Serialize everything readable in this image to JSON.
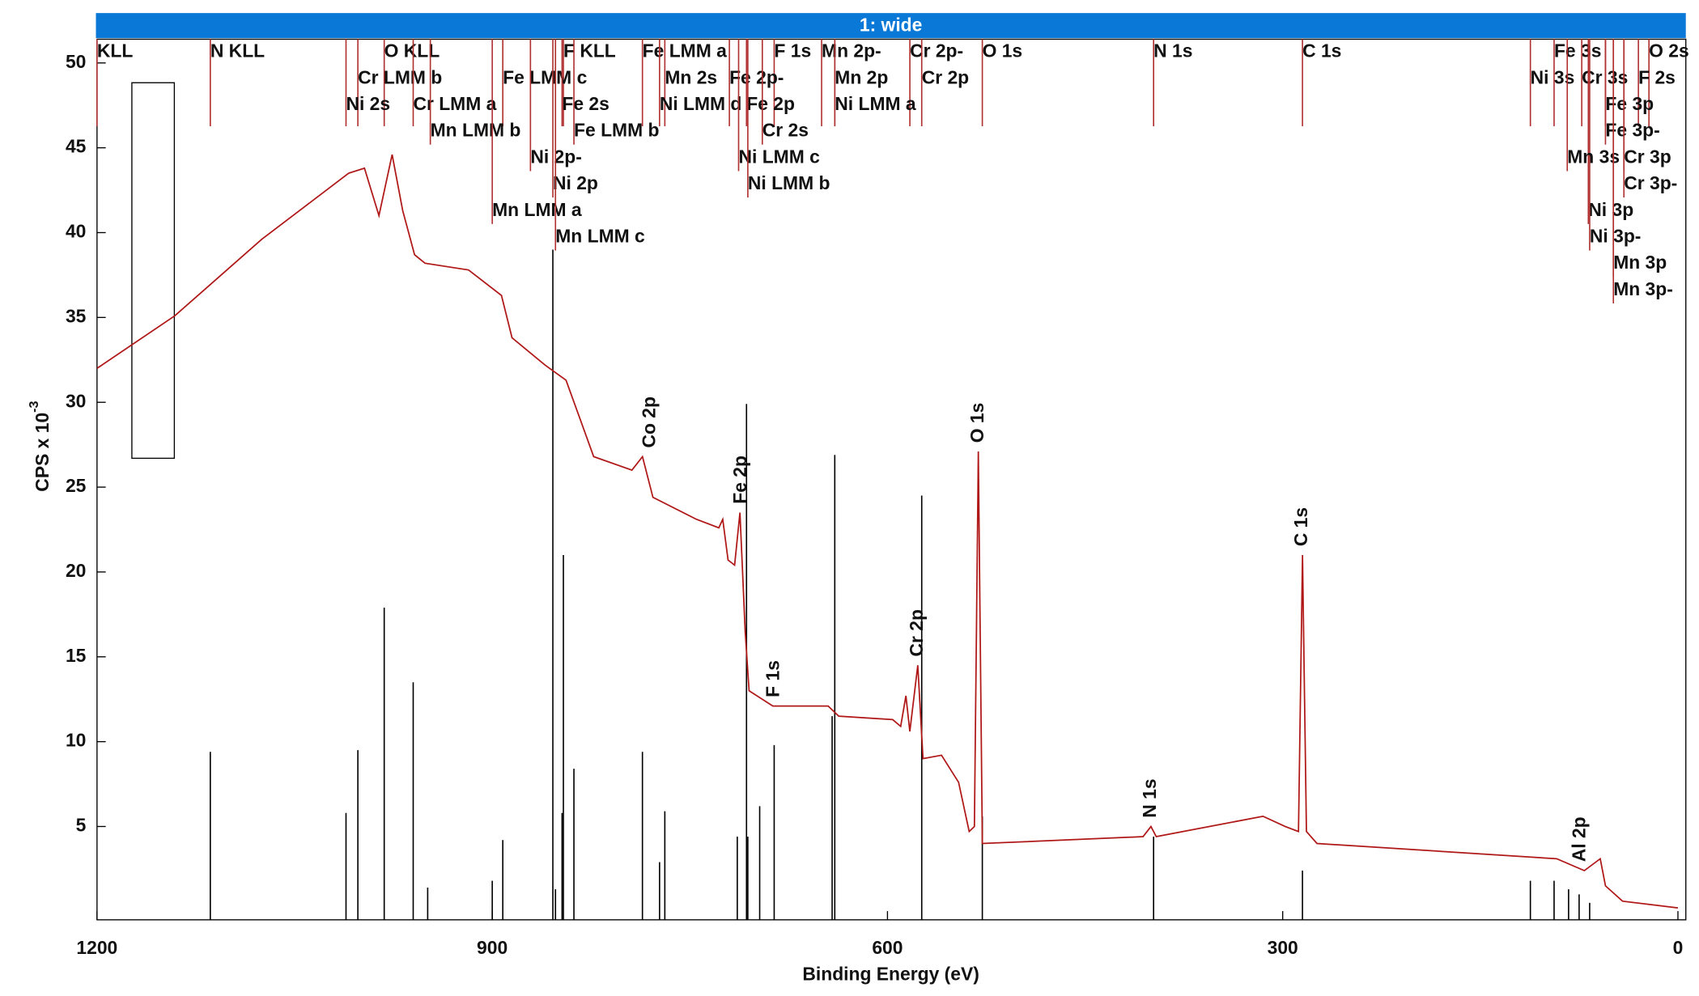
{
  "chart_data": {
    "type": "line",
    "title": "1: wide",
    "x_label": "Binding Energy (eV)",
    "y_label": "CPS x 10",
    "y_label_exponent": "-3",
    "xlim": [
      1200,
      -6
    ],
    "ylim": [
      -0.5,
      51.4
    ],
    "xticks": [
      1200,
      900,
      600,
      300,
      0
    ],
    "yticks": [
      5,
      10,
      15,
      20,
      25,
      30,
      35,
      40,
      45,
      50
    ],
    "x": [
      1200,
      1141,
      1075,
      1009,
      997,
      986,
      976,
      968,
      959,
      951,
      918,
      893,
      885,
      860,
      844,
      823,
      794,
      786,
      778,
      745,
      728,
      725,
      721,
      716,
      712,
      708,
      705,
      687,
      645,
      637,
      596,
      590,
      586,
      583,
      577,
      573,
      559,
      546,
      538,
      534,
      531,
      528,
      406,
      400,
      396,
      315,
      298,
      288,
      285,
      282,
      274,
      92,
      71,
      59,
      55,
      42,
      0
    ],
    "series": [
      {
        "color": "#b01818",
        "values": [
          32.0,
          35.1,
          39.6,
          43.5,
          43.8,
          41.0,
          44.6,
          41.3,
          38.7,
          38.2,
          37.8,
          36.3,
          33.8,
          32.2,
          31.3,
          26.8,
          26.0,
          26.8,
          24.4,
          23.1,
          22.6,
          23.1,
          20.7,
          20.4,
          23.5,
          16.5,
          13.0,
          12.1,
          12.1,
          11.5,
          11.3,
          10.9,
          12.7,
          10.6,
          14.5,
          9.0,
          9.2,
          7.6,
          4.7,
          5.0,
          27.1,
          4.0,
          4.4,
          5.0,
          4.4,
          5.6,
          5.0,
          4.7,
          21.0,
          4.7,
          4.0,
          3.1,
          2.4,
          3.1,
          1.5,
          0.6,
          0.2
        ]
      }
    ],
    "markers": {
      "color": "#b03030",
      "items": [
        {
          "label": "KLL",
          "x": 1200
        },
        {
          "label": "N KLL",
          "x": 1114
        },
        {
          "label": "O KLL",
          "x": 982
        },
        {
          "label": "F KLL",
          "x": 846
        },
        {
          "label": "Fe LMM a",
          "x": 786
        },
        {
          "label": "F 1s",
          "x": 686
        },
        {
          "label": "Mn 2p-",
          "x": 650
        },
        {
          "label": "Cr 2p-",
          "x": 583
        },
        {
          "label": "O 1s",
          "x": 528
        },
        {
          "label": "N 1s",
          "x": 398
        },
        {
          "label": "C 1s",
          "x": 285
        },
        {
          "label": "Fe 3s",
          "x": 94
        },
        {
          "label": "O 2s",
          "x": 22
        },
        {
          "label": "Cr LMM b",
          "x": 1002
        },
        {
          "label": "Fe LMM c",
          "x": 892
        },
        {
          "label": "Mn 2s",
          "x": 769
        },
        {
          "label": "Fe 2p-",
          "x": 720
        },
        {
          "label": "Mn 2p",
          "x": 640
        },
        {
          "label": "Cr 2p",
          "x": 574
        },
        {
          "label": "Cr 3s",
          "x": 73
        },
        {
          "label": "F 2s",
          "x": 30
        },
        {
          "label": "Ni 2s",
          "x": 1011
        },
        {
          "label": "Cr LMM a",
          "x": 960
        },
        {
          "label": "Fe 2s",
          "x": 847
        },
        {
          "label": "Fe 2p",
          "x": 707
        },
        {
          "label": "Ni LMM a",
          "x": 640
        },
        {
          "label": "Ni 3s",
          "x": 112
        },
        {
          "label": "Fe 3p",
          "x": 55
        },
        {
          "label": "Mn LMM b",
          "x": 947
        },
        {
          "label": "Fe LMM b",
          "x": 838
        },
        {
          "label": "Cr 2s",
          "x": 695
        },
        {
          "label": "Fe 3p-",
          "x": 55
        },
        {
          "label": "Ni 2p-",
          "x": 871
        },
        {
          "label": "Ni LMM d",
          "x": 773
        },
        {
          "label": "Cr 3p",
          "x": 41
        },
        {
          "label": "Ni 2p",
          "x": 854
        },
        {
          "label": "Ni LMM c",
          "x": 713
        },
        {
          "label": "Cr 3p-",
          "x": 41
        },
        {
          "label": "Mn LMM a",
          "x": 900
        },
        {
          "label": "Ni LMM b",
          "x": 706
        },
        {
          "label": "Ni 3p",
          "x": 68
        },
        {
          "label": "Mn LMM c",
          "x": 852
        },
        {
          "label": "Ni 3p-",
          "x": 67
        },
        {
          "label": "Mn 3s",
          "x": 84
        },
        {
          "label": "Mn 3p",
          "x": 49
        },
        {
          "label": "Mn 3p-",
          "x": 49
        }
      ]
    },
    "reference_lines": {
      "color": "#000000",
      "x": [
        1114,
        1011,
        1002,
        982,
        960,
        949,
        900,
        892,
        854,
        852,
        847,
        846,
        838,
        786,
        773,
        769,
        714,
        707,
        706,
        697,
        686,
        642,
        640,
        574,
        528,
        398,
        285,
        112,
        94,
        83,
        75,
        67
      ],
      "values": [
        9.4,
        5.8,
        9.5,
        17.9,
        13.5,
        1.4,
        1.8,
        4.2,
        39.0,
        1.3,
        5.8,
        21.0,
        8.4,
        9.4,
        2.9,
        5.9,
        4.4,
        29.9,
        4.4,
        6.2,
        9.8,
        11.5,
        26.9,
        24.5,
        5.6,
        4.4,
        2.4,
        1.8,
        1.8,
        1.3,
        1.0,
        0.5
      ]
    },
    "peak_labels": [
      {
        "label": "Co 2p",
        "x": 780
      },
      {
        "label": "Fe 2p",
        "x": 711
      },
      {
        "label": "F 1s",
        "x": 686
      },
      {
        "label": "Cr 2p",
        "x": 577
      },
      {
        "label": "O 1s",
        "x": 531
      },
      {
        "label": "N 1s",
        "x": 400
      },
      {
        "label": "C 1s",
        "x": 285
      },
      {
        "label": "Al 2p",
        "x": 74
      }
    ]
  }
}
